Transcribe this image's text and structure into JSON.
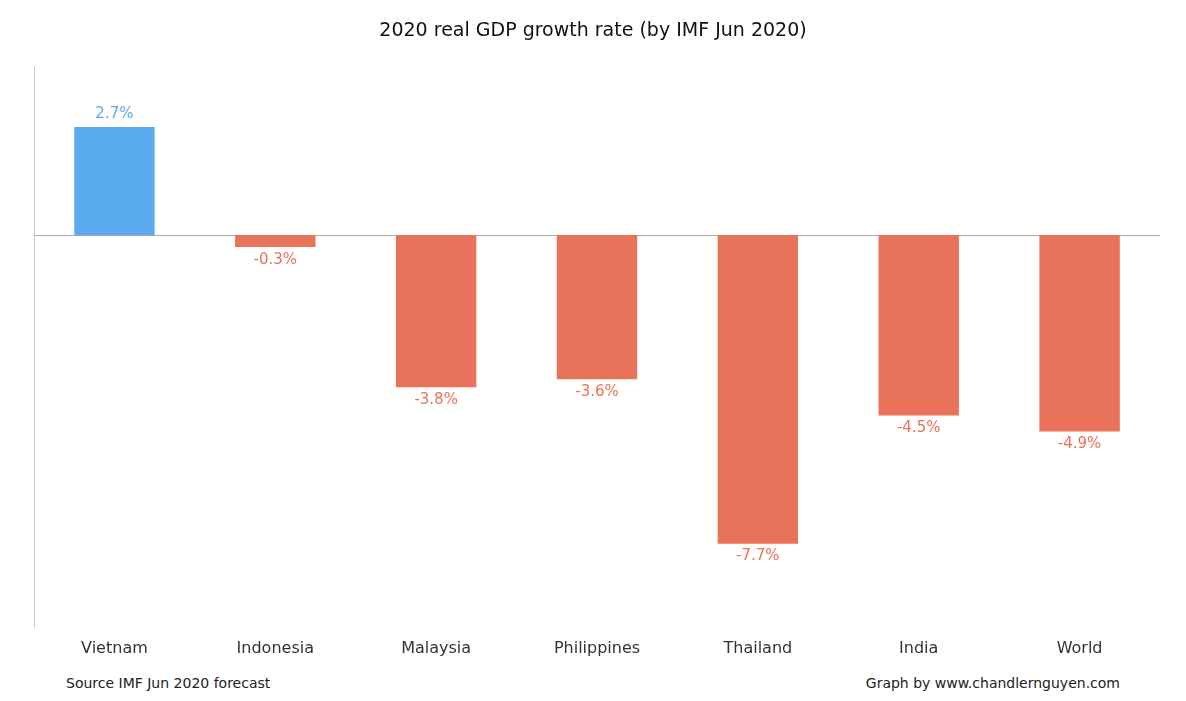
{
  "chart_data": {
    "type": "bar",
    "title": "2020 real GDP growth rate (by IMF Jun 2020)",
    "categories": [
      "Vietnam",
      "Indonesia",
      "Malaysia",
      "Philippines",
      "Thailand",
      "India",
      "World"
    ],
    "values": [
      2.7,
      -0.3,
      -3.8,
      -3.6,
      -7.7,
      -4.5,
      -4.9
    ],
    "value_labels": [
      "2.7%",
      "-0.3%",
      "-3.8%",
      "-3.6%",
      "-7.7%",
      "-4.5%",
      "-4.9%"
    ],
    "colors": [
      "#5aabf0",
      "#e8735a",
      "#e8735a",
      "#e8735a",
      "#e8735a",
      "#e8735a",
      "#e8735a"
    ],
    "ylim": [
      -9.8,
      4.2
    ],
    "grid": false,
    "tick_labels": "x",
    "data_labels": true,
    "annotations": [
      "Source IMF Jun 2020 forecast",
      "Graph by www.chandlernguyen.com"
    ]
  }
}
